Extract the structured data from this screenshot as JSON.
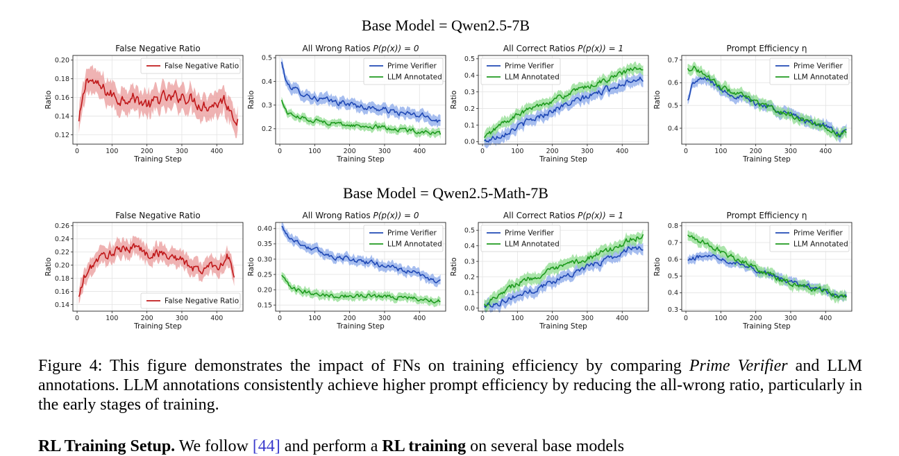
{
  "figure": {
    "groups": [
      {
        "title": "Base Model = Qwen2.5-7B"
      },
      {
        "title": "Base Model = Qwen2.5-Math-7B"
      }
    ],
    "colors": {
      "fn": "#c0181a",
      "fn_band": "#e99a9a",
      "prime": "#1f48b5",
      "prime_band": "#8aa8ea",
      "llm": "#1e9a1e",
      "llm_band": "#8fdc8f"
    }
  },
  "chart_data": [
    {
      "type": "line",
      "group": 0,
      "title": "False Negative Ratio",
      "xlabel": "Training Step",
      "ylabel": "Ratio",
      "xlim": [
        -12,
        475
      ],
      "ylim": [
        0.11,
        0.205
      ],
      "xticks": [
        0,
        100,
        200,
        300,
        400
      ],
      "yticks": [
        0.12,
        0.14,
        0.16,
        0.18,
        0.2
      ],
      "ytick_labels": [
        "0.12",
        "0.14",
        "0.16",
        "0.18",
        "0.20"
      ],
      "legend": "top-right",
      "grid": true,
      "x": [
        5,
        30,
        60,
        90,
        120,
        150,
        180,
        210,
        240,
        270,
        300,
        330,
        350,
        370,
        400,
        420,
        440,
        460
      ],
      "series": [
        {
          "name": "False Negative Ratio",
          "color": "fn",
          "band": 0.013,
          "values": [
            0.133,
            0.183,
            0.171,
            0.165,
            0.158,
            0.162,
            0.156,
            0.151,
            0.16,
            0.157,
            0.163,
            0.158,
            0.154,
            0.152,
            0.154,
            0.158,
            0.148,
            0.136
          ]
        }
      ]
    },
    {
      "type": "line",
      "group": 0,
      "title": "All Wrong Ratios P(p(x)) = 0",
      "xlabel": "Training Step",
      "ylabel": "Ratio",
      "xlim": [
        -12,
        475
      ],
      "ylim": [
        0.135,
        0.51
      ],
      "xticks": [
        0,
        100,
        200,
        300,
        400
      ],
      "yticks": [
        0.2,
        0.3,
        0.4,
        0.5
      ],
      "ytick_labels": [
        "0.2",
        "0.3",
        "0.4",
        "0.5"
      ],
      "legend": "top-right",
      "grid": true,
      "x": [
        5,
        20,
        50,
        100,
        150,
        200,
        250,
        300,
        350,
        400,
        430,
        460
      ],
      "series": [
        {
          "name": "Prime Verifier",
          "color": "prime",
          "band": 0.022,
          "values": [
            0.48,
            0.39,
            0.36,
            0.33,
            0.315,
            0.305,
            0.29,
            0.28,
            0.265,
            0.255,
            0.25,
            0.23
          ]
        },
        {
          "name": "LLM Annotated",
          "color": "llm",
          "band": 0.016,
          "values": [
            0.32,
            0.27,
            0.25,
            0.235,
            0.225,
            0.215,
            0.21,
            0.205,
            0.195,
            0.19,
            0.185,
            0.175
          ]
        }
      ]
    },
    {
      "type": "line",
      "group": 0,
      "title": "All Correct Ratios P(p(x)) = 1",
      "xlabel": "Training Step",
      "ylabel": "Ratio",
      "xlim": [
        -12,
        475
      ],
      "ylim": [
        -0.015,
        0.52
      ],
      "xticks": [
        0,
        100,
        200,
        300,
        400
      ],
      "yticks": [
        0.0,
        0.1,
        0.2,
        0.3,
        0.4,
        0.5
      ],
      "ytick_labels": [
        "0.0",
        "0.1",
        "0.2",
        "0.3",
        "0.4",
        "0.5"
      ],
      "legend": "top-left",
      "grid": true,
      "x": [
        5,
        50,
        100,
        150,
        200,
        250,
        300,
        350,
        400,
        430,
        460
      ],
      "series": [
        {
          "name": "Prime Verifier",
          "color": "prime",
          "band": 0.035,
          "values": [
            0.0,
            0.04,
            0.09,
            0.14,
            0.19,
            0.23,
            0.27,
            0.31,
            0.35,
            0.38,
            0.38
          ]
        },
        {
          "name": "LLM Annotated",
          "color": "llm",
          "band": 0.03,
          "values": [
            0.02,
            0.1,
            0.16,
            0.21,
            0.25,
            0.29,
            0.33,
            0.37,
            0.41,
            0.44,
            0.43
          ]
        }
      ]
    },
    {
      "type": "line",
      "group": 0,
      "title": "Prompt Efficiency η",
      "xlabel": "Training Step",
      "ylabel": "Ratio",
      "xlim": [
        -12,
        475
      ],
      "ylim": [
        0.33,
        0.72
      ],
      "xticks": [
        0,
        100,
        200,
        300,
        400
      ],
      "yticks": [
        0.4,
        0.5,
        0.6,
        0.7
      ],
      "ytick_labels": [
        "0.4",
        "0.5",
        "0.6",
        "0.7"
      ],
      "legend": "top-right",
      "grid": true,
      "x": [
        5,
        20,
        60,
        100,
        150,
        200,
        250,
        300,
        350,
        400,
        440,
        460
      ],
      "series": [
        {
          "name": "Prime Verifier",
          "color": "prime",
          "band": 0.022,
          "values": [
            0.52,
            0.6,
            0.62,
            0.57,
            0.54,
            0.51,
            0.49,
            0.46,
            0.43,
            0.41,
            0.37,
            0.385
          ]
        },
        {
          "name": "LLM Annotated",
          "color": "llm",
          "band": 0.022,
          "values": [
            0.66,
            0.67,
            0.63,
            0.58,
            0.55,
            0.515,
            0.48,
            0.46,
            0.43,
            0.405,
            0.37,
            0.39
          ]
        }
      ]
    },
    {
      "type": "line",
      "group": 1,
      "title": "False Negative Ratio",
      "xlabel": "Training Step",
      "ylabel": "Ratio",
      "xlim": [
        -12,
        475
      ],
      "ylim": [
        0.13,
        0.265
      ],
      "xticks": [
        0,
        100,
        200,
        300,
        400
      ],
      "yticks": [
        0.14,
        0.16,
        0.18,
        0.2,
        0.22,
        0.24,
        0.26
      ],
      "ytick_labels": [
        "0.14",
        "0.16",
        "0.18",
        "0.20",
        "0.22",
        "0.24",
        "0.26"
      ],
      "legend": "bottom-right",
      "grid": true,
      "x": [
        5,
        20,
        50,
        80,
        110,
        140,
        170,
        200,
        230,
        260,
        290,
        320,
        350,
        380,
        410,
        430,
        450
      ],
      "series": [
        {
          "name": "False Negative Ratio",
          "color": "fn",
          "band": 0.013,
          "values": [
            0.15,
            0.18,
            0.205,
            0.215,
            0.22,
            0.225,
            0.23,
            0.215,
            0.22,
            0.215,
            0.21,
            0.2,
            0.19,
            0.2,
            0.2,
            0.215,
            0.185
          ]
        }
      ]
    },
    {
      "type": "line",
      "group": 1,
      "title": "All Wrong Ratios P(p(x)) = 0",
      "xlabel": "Training Step",
      "ylabel": "Ratio",
      "xlim": [
        -12,
        475
      ],
      "ylim": [
        0.13,
        0.42
      ],
      "xticks": [
        0,
        100,
        200,
        300,
        400
      ],
      "yticks": [
        0.15,
        0.2,
        0.25,
        0.3,
        0.35,
        0.4
      ],
      "ytick_labels": [
        "0.15",
        "0.20",
        "0.25",
        "0.30",
        "0.35",
        "0.40"
      ],
      "legend": "top-right",
      "grid": true,
      "x": [
        5,
        30,
        60,
        100,
        150,
        200,
        250,
        300,
        350,
        400,
        430,
        460
      ],
      "series": [
        {
          "name": "Prime Verifier",
          "color": "prime",
          "band": 0.015,
          "values": [
            0.405,
            0.37,
            0.35,
            0.33,
            0.31,
            0.3,
            0.29,
            0.28,
            0.265,
            0.25,
            0.235,
            0.225
          ]
        },
        {
          "name": "LLM Annotated",
          "color": "llm",
          "band": 0.013,
          "values": [
            0.245,
            0.205,
            0.195,
            0.19,
            0.18,
            0.18,
            0.18,
            0.18,
            0.175,
            0.17,
            0.165,
            0.165
          ]
        }
      ]
    },
    {
      "type": "line",
      "group": 1,
      "title": "All Correct Ratios P(p(x)) = 1",
      "xlabel": "Training Step",
      "ylabel": "Ratio",
      "xlim": [
        -12,
        475
      ],
      "ylim": [
        -0.02,
        0.55
      ],
      "xticks": [
        0,
        100,
        200,
        300,
        400
      ],
      "yticks": [
        0.0,
        0.1,
        0.2,
        0.3,
        0.4,
        0.5
      ],
      "ytick_labels": [
        "0.0",
        "0.1",
        "0.2",
        "0.3",
        "0.4",
        "0.5"
      ],
      "legend": "top-left",
      "grid": true,
      "x": [
        5,
        50,
        100,
        150,
        200,
        250,
        300,
        350,
        400,
        430,
        460
      ],
      "series": [
        {
          "name": "Prime Verifier",
          "color": "prime",
          "band": 0.035,
          "values": [
            0.01,
            0.04,
            0.08,
            0.12,
            0.17,
            0.22,
            0.26,
            0.31,
            0.35,
            0.4,
            0.38
          ]
        },
        {
          "name": "LLM Annotated",
          "color": "llm",
          "band": 0.035,
          "values": [
            0.02,
            0.1,
            0.16,
            0.2,
            0.24,
            0.28,
            0.32,
            0.36,
            0.41,
            0.45,
            0.46
          ]
        }
      ]
    },
    {
      "type": "line",
      "group": 1,
      "title": "Prompt Efficiency η",
      "xlabel": "Training Step",
      "ylabel": "Ratio",
      "xlim": [
        -12,
        475
      ],
      "ylim": [
        0.29,
        0.82
      ],
      "xticks": [
        0,
        100,
        200,
        300,
        400
      ],
      "yticks": [
        0.3,
        0.4,
        0.5,
        0.6,
        0.7,
        0.8
      ],
      "ytick_labels": [
        "0.3",
        "0.4",
        "0.5",
        "0.6",
        "0.7",
        "0.8"
      ],
      "legend": "top-right",
      "grid": true,
      "x": [
        5,
        30,
        70,
        110,
        150,
        200,
        250,
        300,
        350,
        400,
        440,
        460
      ],
      "series": [
        {
          "name": "Prime Verifier",
          "color": "prime",
          "band": 0.025,
          "values": [
            0.59,
            0.61,
            0.63,
            0.6,
            0.58,
            0.54,
            0.5,
            0.46,
            0.44,
            0.41,
            0.37,
            0.38
          ]
        },
        {
          "name": "LLM Annotated",
          "color": "llm",
          "band": 0.03,
          "values": [
            0.74,
            0.72,
            0.68,
            0.64,
            0.6,
            0.55,
            0.5,
            0.46,
            0.43,
            0.41,
            0.37,
            0.38
          ]
        }
      ]
    }
  ],
  "caption": {
    "label": "Figure 4:",
    "text_a": "This figure demonstrates the impact of FNs on training efficiency by comparing",
    "emph": "Prime Verifier",
    "text_b": "and LLM annotations. LLM annotations consistently achieve higher prompt efficiency by reducing the all-wrong ratio, particularly in the early stages of training."
  },
  "next_line": {
    "bold_a": "RL Training Setup.",
    "text_a": "We follow",
    "ref": "[44]",
    "text_b": "and perform a",
    "bold_b": "RL training",
    "text_c": "on several base models"
  }
}
